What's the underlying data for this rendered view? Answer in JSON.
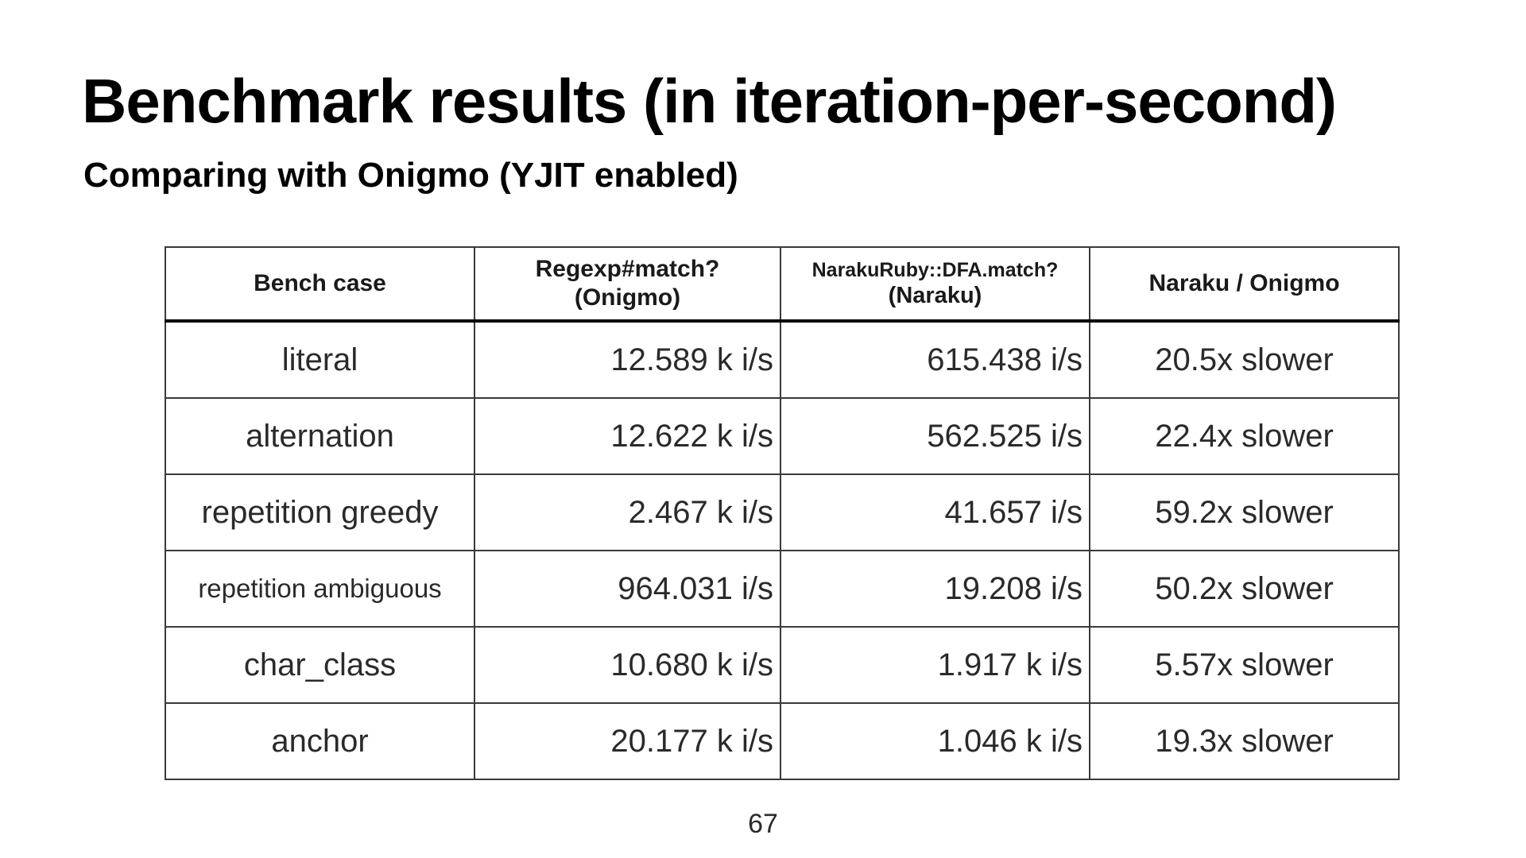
{
  "slide": {
    "title": "Benchmark results (in iteration-per-second)",
    "subtitle": "Comparing with Onigmo (YJIT enabled)",
    "page_number": "67"
  },
  "table": {
    "headers": [
      {
        "lines": [
          "Bench case"
        ]
      },
      {
        "lines": [
          "Regexp#match?",
          "(Onigmo)"
        ]
      },
      {
        "lines": [
          "NarakuRuby::DFA.match?",
          "(Naraku)"
        ]
      },
      {
        "lines": [
          "Naraku / Onigmo"
        ]
      }
    ],
    "rows": [
      [
        "literal",
        "12.589 k i/s",
        "615.438 i/s",
        "20.5x slower"
      ],
      [
        "alternation",
        "12.622 k i/s",
        "562.525 i/s",
        "22.4x slower"
      ],
      [
        "repetition greedy",
        "2.467 k i/s",
        "41.657 i/s",
        "59.2x slower"
      ],
      [
        "repetition ambiguous",
        "964.031 i/s",
        "19.208 i/s",
        "50.2x slower"
      ],
      [
        "char_class",
        "10.680 k i/s",
        "1.917 k i/s",
        "5.57x slower"
      ],
      [
        "anchor",
        "20.177 k i/s",
        "1.046 k i/s",
        "19.3x slower"
      ]
    ]
  }
}
